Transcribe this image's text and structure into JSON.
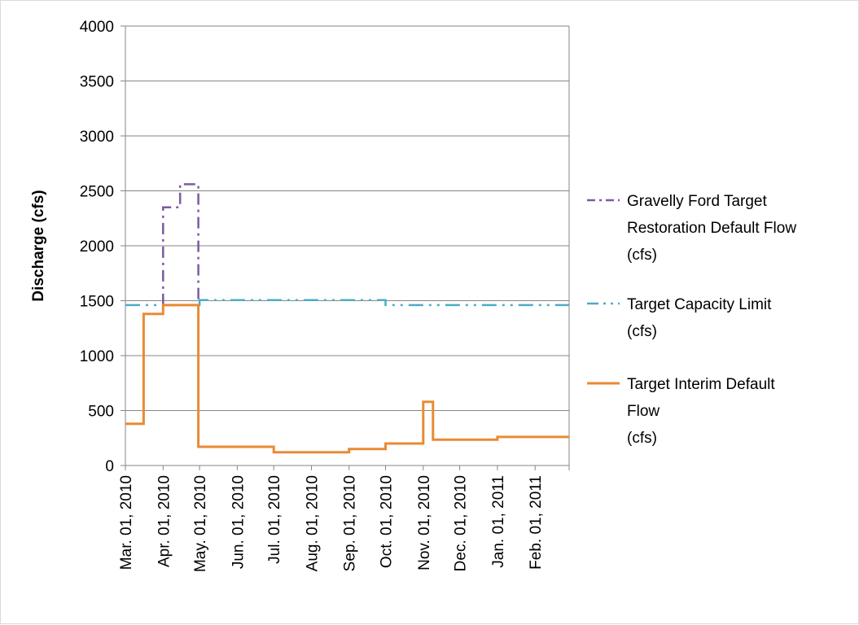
{
  "chart_data": {
    "type": "line",
    "title": "",
    "xlabel": "",
    "ylabel": "Discharge (cfs)",
    "ylim": [
      0,
      4000
    ],
    "yticks": [
      0,
      500,
      1000,
      1500,
      2000,
      2500,
      3000,
      3500,
      4000
    ],
    "xlim": [
      "2010-03-01",
      "2011-03-01"
    ],
    "xtick_dates": [
      "2010-03-01",
      "2010-04-01",
      "2010-05-01",
      "2010-06-01",
      "2010-07-01",
      "2010-08-01",
      "2010-09-01",
      "2010-10-01",
      "2010-11-01",
      "2010-12-01",
      "2011-01-01",
      "2011-02-01"
    ],
    "xtick_labels": [
      "Mar. 01, 2010",
      "Apr. 01, 2010",
      "May. 01, 2010",
      "Jun. 01, 2010",
      "Jul. 01, 2010",
      "Aug. 01, 2010",
      "Sep. 01, 2010",
      "Oct. 01, 2010",
      "Nov. 01, 2010",
      "Dec. 01, 2010",
      "Jan. 01, 2011",
      "Feb. 01, 2011"
    ],
    "grid": "horizontal",
    "legend_position": "right",
    "series": [
      {
        "name": "Target Interim Default Flow (cfs)",
        "legend_lines": [
          "Target Interim Default",
          "Flow",
          "(cfs)"
        ],
        "color": "#E98A33",
        "style": "solid",
        "x": [
          "2010-03-01",
          "2010-03-16",
          "2010-03-16",
          "2010-04-01",
          "2010-04-01",
          "2010-04-30",
          "2010-04-30",
          "2010-07-01",
          "2010-07-01",
          "2010-09-01",
          "2010-09-01",
          "2010-10-01",
          "2010-10-01",
          "2010-11-01",
          "2010-11-01",
          "2010-11-09",
          "2010-11-09",
          "2011-01-01",
          "2011-01-01",
          "2011-03-01"
        ],
        "y": [
          380,
          380,
          1380,
          1380,
          1460,
          1460,
          170,
          170,
          120,
          120,
          150,
          150,
          200,
          200,
          580,
          580,
          235,
          235,
          260,
          260
        ]
      },
      {
        "name": "Gravelly Ford Target Restoration Default Flow (cfs)",
        "legend_lines": [
          "Gravelly Ford Target",
          "Restoration Default Flow",
          "(cfs)"
        ],
        "color": "#7B5BA1",
        "style": "dashdot",
        "x": [
          "2010-04-01",
          "2010-04-01",
          "2010-04-15",
          "2010-04-15",
          "2010-04-30",
          "2010-04-30"
        ],
        "y": [
          1460,
          2350,
          2350,
          2560,
          2560,
          1460
        ]
      },
      {
        "name": "Target Capacity Limit (cfs)",
        "legend_lines": [
          "Target Capacity Limit",
          "(cfs)"
        ],
        "color": "#4BACC6",
        "style": "dashdotdot",
        "x": [
          "2010-03-01",
          "2010-04-01",
          "2010-04-30",
          "2010-05-01",
          "2010-05-01",
          "2010-10-01",
          "2010-10-01",
          "2011-03-01"
        ],
        "y": [
          1460,
          1460,
          1460,
          1460,
          1505,
          1505,
          1460,
          1460
        ]
      }
    ]
  }
}
